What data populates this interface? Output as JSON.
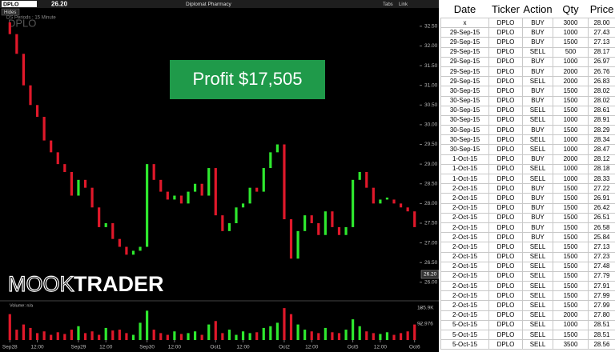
{
  "toolbar": {
    "symbol": "DPLO",
    "company": "Diplomat Pharmacy",
    "tabs": "Tabs",
    "link": "Link",
    "hides": "Hides",
    "watermark": "DPLO",
    "periods": "DS Periods : 15 Minute",
    "volume_legend": "Volume: n/a"
  },
  "overlay": {
    "profit": "Profit $17,505",
    "logo_left": "MOOK",
    "logo_right": "TRADER"
  },
  "chart_data": {
    "type": "candlestick",
    "categories": [
      "Sep28",
      null,
      null,
      null,
      "12:00",
      null,
      null,
      null,
      null,
      null,
      "Sep29",
      null,
      null,
      null,
      "12:00",
      null,
      null,
      null,
      null,
      null,
      "Sep30",
      null,
      null,
      null,
      "12:00",
      null,
      null,
      null,
      null,
      null,
      "Oct1",
      null,
      null,
      null,
      "12:00",
      null,
      null,
      null,
      null,
      null,
      "Oct2",
      null,
      null,
      null,
      "12:00",
      null,
      null,
      null,
      null,
      null,
      "Oct5",
      null,
      null,
      null,
      "12:00",
      null,
      null,
      null,
      null,
      "Oct6"
    ],
    "open": [
      32.6,
      32.3,
      31.8,
      31.0,
      30.5,
      30.2,
      29.6,
      29.3,
      29.0,
      28.8,
      28.2,
      28.6,
      28.4,
      27.9,
      27.4,
      27.5,
      27.1,
      26.9,
      26.7,
      26.8,
      26.9,
      29.0,
      28.6,
      28.3,
      28.1,
      28.2,
      28.0,
      28.3,
      28.5,
      28.2,
      28.9,
      27.7,
      27.3,
      27.5,
      27.9,
      28.0,
      28.4,
      28.3,
      28.9,
      29.3,
      29.5,
      27.6,
      26.6,
      27.3,
      27.7,
      27.5,
      27.2,
      27.8,
      27.4,
      27.2,
      27.4,
      28.6,
      28.8,
      28.4,
      28.0,
      28.1,
      28.1,
      28.0,
      27.9,
      27.8
    ],
    "close": [
      32.3,
      31.8,
      31.0,
      30.5,
      30.2,
      29.6,
      29.3,
      29.0,
      28.8,
      28.2,
      28.6,
      28.4,
      27.9,
      27.4,
      27.5,
      27.1,
      26.9,
      26.7,
      26.8,
      26.9,
      29.0,
      28.6,
      28.3,
      28.1,
      28.2,
      28.0,
      28.3,
      28.5,
      28.2,
      28.9,
      27.7,
      27.3,
      27.5,
      27.9,
      28.0,
      28.4,
      28.3,
      28.9,
      29.3,
      29.5,
      27.6,
      26.6,
      27.3,
      27.7,
      27.5,
      27.2,
      27.8,
      27.4,
      27.2,
      27.4,
      28.6,
      28.8,
      28.4,
      28.0,
      28.1,
      28.15,
      28.0,
      27.9,
      27.8,
      27.4
    ],
    "volume": [
      150000,
      60000,
      90000,
      70000,
      40000,
      50000,
      30000,
      45000,
      35000,
      60000,
      80000,
      40000,
      50000,
      30000,
      70000,
      55000,
      60000,
      40000,
      30000,
      100000,
      170000,
      60000,
      40000,
      30000,
      50000,
      35000,
      40000,
      50000,
      30000,
      90000,
      110000,
      40000,
      60000,
      30000,
      50000,
      40000,
      45000,
      70000,
      80000,
      100000,
      185000,
      150000,
      90000,
      60000,
      50000,
      40000,
      70000,
      45000,
      40000,
      60000,
      120000,
      80000,
      50000,
      40000,
      35000,
      45000,
      30000,
      40000,
      50000,
      90000
    ],
    "up_color": "#2ee82e",
    "down_color": "#e0182a",
    "ylim": [
      25.55,
      32.76
    ],
    "yticks": [
      {
        "value": 26,
        "label": "26.00"
      },
      {
        "value": 26.5,
        "label": "26.50"
      },
      {
        "value": 27,
        "label": "27.00"
      },
      {
        "value": 27.5,
        "label": "27.50"
      },
      {
        "value": 28,
        "label": "28.00"
      },
      {
        "value": 28.5,
        "label": "28.50"
      },
      {
        "value": 29,
        "label": "29.00"
      },
      {
        "value": 29.5,
        "label": "29.50"
      },
      {
        "value": 30,
        "label": "30.00"
      },
      {
        "value": 30.5,
        "label": "30.50"
      },
      {
        "value": 31,
        "label": "31.00"
      },
      {
        "value": 31.5,
        "label": "31.50"
      },
      {
        "value": 32,
        "label": "32.00"
      },
      {
        "value": 32.5,
        "label": "32.50"
      }
    ],
    "last_price": {
      "value": 26.2,
      "label": "26.20"
    },
    "volume_lim": [
      0,
      218000
    ],
    "volume_ticks": [
      {
        "value": 92976,
        "label": "92,976"
      },
      {
        "value": 185900,
        "label": "185.9K"
      }
    ]
  },
  "table": {
    "header": [
      "Date",
      "Ticker",
      "Action",
      "Qty",
      "Price"
    ],
    "rows": [
      [
        "x",
        "DPLO",
        "BUY",
        "3000",
        "28.00"
      ],
      [
        "29-Sep-15",
        "DPLO",
        "BUY",
        "1000",
        "27.43"
      ],
      [
        "29-Sep-15",
        "DPLO",
        "BUY",
        "1500",
        "27.13"
      ],
      [
        "29-Sep-15",
        "DPLO",
        "SELL",
        "500",
        "28.17"
      ],
      [
        "29-Sep-15",
        "DPLO",
        "BUY",
        "1000",
        "26.97"
      ],
      [
        "29-Sep-15",
        "DPLO",
        "BUY",
        "2000",
        "26.76"
      ],
      [
        "29-Sep-15",
        "DPLO",
        "SELL",
        "2000",
        "26.83"
      ],
      [
        "30-Sep-15",
        "DPLO",
        "BUY",
        "1500",
        "28.02"
      ],
      [
        "30-Sep-15",
        "DPLO",
        "BUY",
        "1500",
        "28.02"
      ],
      [
        "30-Sep-15",
        "DPLO",
        "SELL",
        "1500",
        "28.61"
      ],
      [
        "30-Sep-15",
        "DPLO",
        "SELL",
        "1000",
        "28.91"
      ],
      [
        "30-Sep-15",
        "DPLO",
        "BUY",
        "1500",
        "28.29"
      ],
      [
        "30-Sep-15",
        "DPLO",
        "SELL",
        "1000",
        "28.34"
      ],
      [
        "30-Sep-15",
        "DPLO",
        "SELL",
        "1000",
        "28.47"
      ],
      [
        "1-Oct-15",
        "DPLO",
        "BUY",
        "2000",
        "28.12"
      ],
      [
        "1-Oct-15",
        "DPLO",
        "SELL",
        "1000",
        "28.18"
      ],
      [
        "1-Oct-15",
        "DPLO",
        "SELL",
        "1000",
        "28.33"
      ],
      [
        "2-Oct-15",
        "DPLO",
        "BUY",
        "1500",
        "27.22"
      ],
      [
        "2-Oct-15",
        "DPLO",
        "BUY",
        "1500",
        "26.91"
      ],
      [
        "2-Oct-15",
        "DPLO",
        "BUY",
        "1500",
        "26.42"
      ],
      [
        "2-Oct-15",
        "DPLO",
        "BUY",
        "1500",
        "26.51"
      ],
      [
        "2-Oct-15",
        "DPLO",
        "BUY",
        "1500",
        "26.58"
      ],
      [
        "2-Oct-15",
        "DPLO",
        "BUY",
        "1500",
        "25.84"
      ],
      [
        "2-Oct-15",
        "DPLO",
        "SELL",
        "1500",
        "27.13"
      ],
      [
        "2-Oct-15",
        "DPLO",
        "SELL",
        "1500",
        "27.23"
      ],
      [
        "2-Oct-15",
        "DPLO",
        "SELL",
        "1500",
        "27.48"
      ],
      [
        "2-Oct-15",
        "DPLO",
        "SELL",
        "1500",
        "27.79"
      ],
      [
        "2-Oct-15",
        "DPLO",
        "SELL",
        "1500",
        "27.91"
      ],
      [
        "2-Oct-15",
        "DPLO",
        "SELL",
        "1500",
        "27.99"
      ],
      [
        "2-Oct-15",
        "DPLO",
        "SELL",
        "1500",
        "27.99"
      ],
      [
        "2-Oct-15",
        "DPLO",
        "SELL",
        "2000",
        "27.80"
      ],
      [
        "5-Oct-15",
        "DPLO",
        "SELL",
        "1000",
        "28.51"
      ],
      [
        "5-Oct-15",
        "DPLO",
        "SELL",
        "1500",
        "28.51"
      ],
      [
        "5-Oct-15",
        "DPLO",
        "SELL",
        "3500",
        "28.56"
      ]
    ]
  }
}
